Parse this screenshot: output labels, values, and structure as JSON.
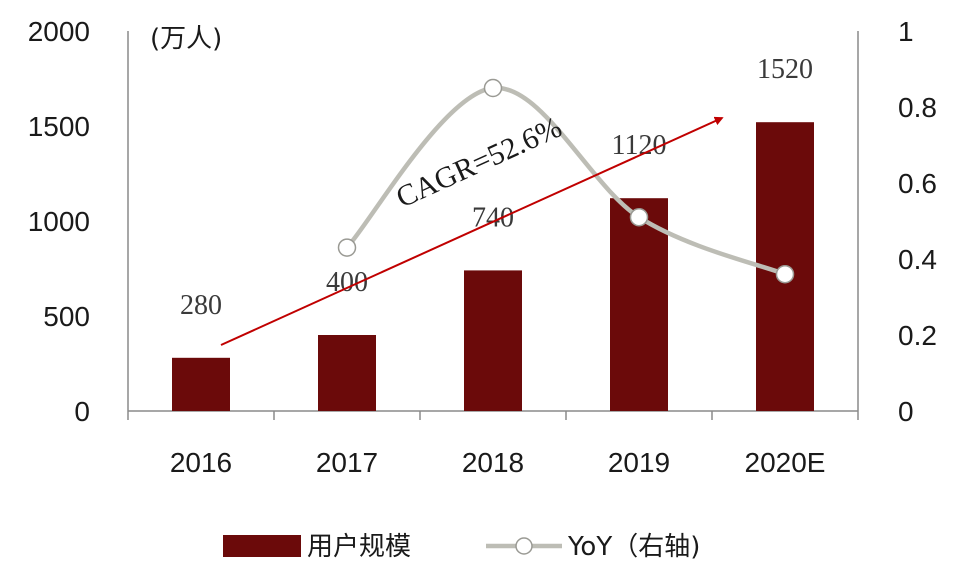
{
  "chart_data": {
    "type": "bar",
    "categories": [
      "2016",
      "2017",
      "2018",
      "2019",
      "2020E"
    ],
    "series": [
      {
        "name": "用户规模",
        "type": "bar",
        "axis": "left",
        "values": [
          280,
          400,
          740,
          1120,
          1520
        ],
        "color": "#6b0a0a"
      },
      {
        "name": "YoY（右轴)",
        "type": "line",
        "axis": "right",
        "values": [
          null,
          0.43,
          0.85,
          0.51,
          0.36
        ],
        "color": "#bdbdb5"
      }
    ],
    "left_axis": {
      "unit": "(万人)",
      "ylim": [
        0,
        2000
      ],
      "ticks": [
        "0",
        "500",
        "1000",
        "1500",
        "2000"
      ]
    },
    "right_axis": {
      "ylim": [
        0,
        1
      ],
      "ticks": [
        "0",
        "0.2",
        "0.4",
        "0.6",
        "0.8",
        "1"
      ]
    },
    "data_labels": [
      "280",
      "400",
      "740",
      "1120",
      "1520"
    ],
    "annotation": {
      "text": "CAGR=52.6%",
      "arrow_color": "#c00000"
    },
    "legend": {
      "position": "bottom"
    },
    "grid": false
  }
}
